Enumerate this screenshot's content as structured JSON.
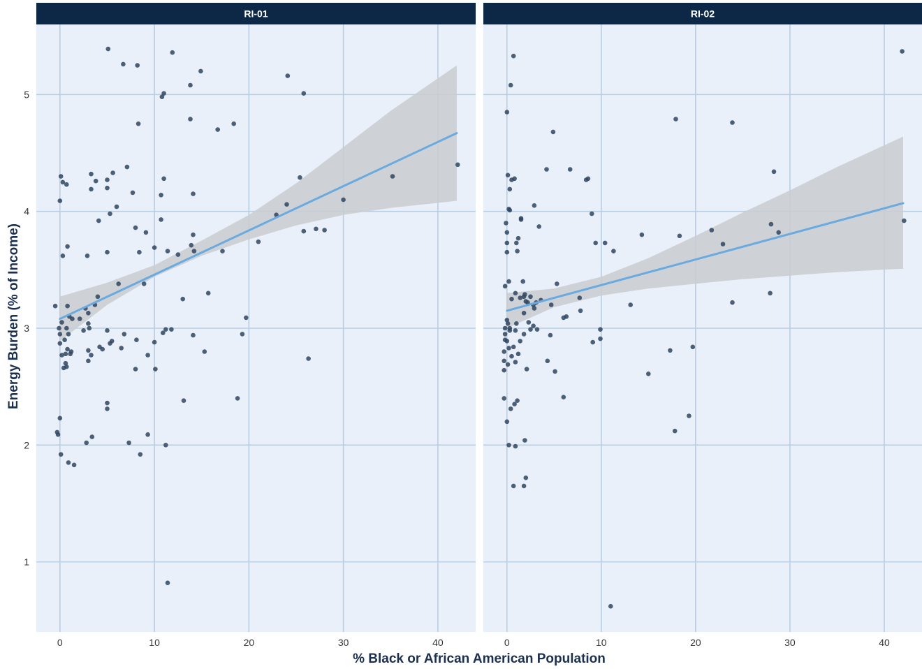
{
  "chart_data": {
    "type": "scatter",
    "xlabel": "% Black or African American Population",
    "ylabel": "Energy Burden (% of Income)",
    "xlim": [
      -2.5,
      44
    ],
    "ylim": [
      0.4,
      5.6
    ],
    "x_ticks": [
      0,
      10,
      20,
      30,
      40
    ],
    "y_ticks": [
      1,
      2,
      3,
      4,
      5
    ],
    "grid": true,
    "colors": {
      "strip": "#0d2847",
      "panel": "#e9f0f9",
      "grid": "#b9cde3",
      "point": "#2f4560",
      "fit_line": "#6aaade",
      "ribbon": "#c9ccd1"
    },
    "panels": [
      {
        "title": "RI-01",
        "fit": {
          "x": [
            0,
            42
          ],
          "y": [
            3.08,
            4.67
          ]
        },
        "ribbon": {
          "x": [
            0,
            5,
            10,
            15,
            20,
            25,
            30,
            35,
            42
          ],
          "lower": [
            2.89,
            3.2,
            3.44,
            3.62,
            3.76,
            3.88,
            3.97,
            4.03,
            4.09
          ],
          "upper": [
            3.27,
            3.39,
            3.54,
            3.75,
            3.97,
            4.24,
            4.55,
            4.86,
            5.25
          ]
        },
        "points": [
          [
            -0.5,
            3.19
          ],
          [
            -0.3,
            2.11
          ],
          [
            -0.2,
            2.09
          ],
          [
            -0.1,
            3.0
          ],
          [
            0.0,
            2.95
          ],
          [
            0.0,
            2.23
          ],
          [
            0.0,
            4.09
          ],
          [
            0.0,
            2.87
          ],
          [
            0.1,
            1.92
          ],
          [
            0.1,
            4.3
          ],
          [
            0.2,
            2.77
          ],
          [
            0.2,
            3.05
          ],
          [
            0.3,
            4.25
          ],
          [
            0.3,
            3.62
          ],
          [
            0.4,
            2.66
          ],
          [
            0.5,
            2.9
          ],
          [
            0.6,
            2.78
          ],
          [
            0.6,
            2.7
          ],
          [
            0.7,
            2.67
          ],
          [
            0.7,
            4.23
          ],
          [
            0.7,
            3.0
          ],
          [
            0.8,
            3.7
          ],
          [
            0.8,
            2.82
          ],
          [
            0.8,
            3.19
          ],
          [
            0.9,
            1.85
          ],
          [
            0.9,
            2.95
          ],
          [
            1.0,
            3.1
          ],
          [
            1.1,
            2.78
          ],
          [
            1.2,
            2.8
          ],
          [
            1.3,
            3.08
          ],
          [
            1.5,
            1.83
          ],
          [
            2.1,
            3.08
          ],
          [
            2.5,
            2.98
          ],
          [
            2.7,
            3.17
          ],
          [
            2.8,
            2.02
          ],
          [
            2.9,
            3.62
          ],
          [
            3.0,
            2.72
          ],
          [
            3.0,
            2.81
          ],
          [
            3.0,
            3.13
          ],
          [
            3.0,
            3.04
          ],
          [
            3.1,
            3.0
          ],
          [
            3.3,
            4.32
          ],
          [
            3.3,
            4.19
          ],
          [
            3.3,
            2.77
          ],
          [
            3.4,
            2.07
          ],
          [
            3.7,
            3.2
          ],
          [
            3.8,
            4.26
          ],
          [
            4.0,
            3.27
          ],
          [
            4.1,
            3.92
          ],
          [
            4.2,
            2.84
          ],
          [
            4.5,
            2.82
          ],
          [
            5.0,
            4.2
          ],
          [
            5.0,
            4.27
          ],
          [
            5.0,
            2.98
          ],
          [
            5.0,
            3.65
          ],
          [
            5.0,
            2.31
          ],
          [
            5.0,
            2.36
          ],
          [
            5.1,
            5.39
          ],
          [
            5.3,
            3.98
          ],
          [
            5.3,
            2.87
          ],
          [
            5.5,
            2.89
          ],
          [
            5.6,
            4.33
          ],
          [
            6.0,
            4.04
          ],
          [
            6.2,
            3.38
          ],
          [
            6.5,
            2.83
          ],
          [
            6.7,
            5.26
          ],
          [
            6.8,
            2.95
          ],
          [
            7.1,
            4.38
          ],
          [
            7.3,
            2.02
          ],
          [
            7.7,
            4.16
          ],
          [
            8.0,
            3.86
          ],
          [
            8.0,
            2.65
          ],
          [
            8.1,
            2.9
          ],
          [
            8.2,
            5.25
          ],
          [
            8.3,
            4.75
          ],
          [
            8.4,
            3.65
          ],
          [
            8.5,
            1.92
          ],
          [
            8.9,
            3.38
          ],
          [
            9.1,
            3.82
          ],
          [
            9.3,
            2.77
          ],
          [
            9.3,
            2.09
          ],
          [
            10.0,
            3.69
          ],
          [
            10.0,
            2.88
          ],
          [
            10.1,
            2.65
          ],
          [
            10.7,
            4.14
          ],
          [
            10.7,
            3.93
          ],
          [
            10.8,
            4.98
          ],
          [
            10.9,
            2.96
          ],
          [
            11.0,
            5.01
          ],
          [
            11.0,
            4.28
          ],
          [
            11.2,
            2.99
          ],
          [
            11.2,
            2.0
          ],
          [
            11.4,
            3.66
          ],
          [
            11.4,
            0.82
          ],
          [
            11.8,
            2.99
          ],
          [
            11.9,
            5.36
          ],
          [
            12.5,
            3.63
          ],
          [
            13.0,
            3.25
          ],
          [
            13.1,
            2.38
          ],
          [
            13.8,
            5.08
          ],
          [
            13.8,
            4.79
          ],
          [
            13.9,
            3.71
          ],
          [
            14.1,
            4.15
          ],
          [
            14.1,
            2.94
          ],
          [
            14.1,
            3.8
          ],
          [
            14.2,
            3.66
          ],
          [
            14.9,
            5.2
          ],
          [
            15.3,
            2.8
          ],
          [
            15.7,
            3.3
          ],
          [
            16.7,
            4.7
          ],
          [
            17.2,
            3.66
          ],
          [
            18.4,
            4.75
          ],
          [
            18.8,
            2.4
          ],
          [
            19.3,
            2.95
          ],
          [
            19.7,
            3.09
          ],
          [
            21.0,
            3.74
          ],
          [
            22.9,
            3.97
          ],
          [
            24.0,
            4.06
          ],
          [
            24.1,
            5.16
          ],
          [
            25.4,
            4.29
          ],
          [
            25.8,
            5.01
          ],
          [
            25.8,
            3.83
          ],
          [
            26.3,
            2.74
          ],
          [
            27.1,
            3.85
          ],
          [
            28.0,
            3.84
          ],
          [
            30.0,
            4.1
          ],
          [
            35.2,
            4.3
          ],
          [
            42.1,
            4.4
          ]
        ]
      },
      {
        "title": "RI-02",
        "fit": {
          "x": [
            0,
            42
          ],
          "y": [
            3.15,
            4.07
          ]
        },
        "ribbon": {
          "x": [
            0,
            5,
            10,
            15,
            20,
            25,
            30,
            35,
            42
          ],
          "lower": [
            3.0,
            3.18,
            3.28,
            3.34,
            3.38,
            3.42,
            3.45,
            3.48,
            3.51
          ],
          "upper": [
            3.3,
            3.34,
            3.44,
            3.6,
            3.79,
            3.99,
            4.18,
            4.38,
            4.64
          ]
        },
        "points": [
          [
            -0.3,
            2.64
          ],
          [
            -0.3,
            2.4
          ],
          [
            -0.3,
            2.72
          ],
          [
            -0.3,
            2.8
          ],
          [
            -0.2,
            2.9
          ],
          [
            -0.2,
            2.95
          ],
          [
            -0.2,
            3.0
          ],
          [
            -0.2,
            3.36
          ],
          [
            -0.1,
            3.9
          ],
          [
            0.0,
            3.07
          ],
          [
            0.0,
            4.85
          ],
          [
            0.0,
            3.82
          ],
          [
            0.0,
            2.2
          ],
          [
            0.0,
            2.89
          ],
          [
            0.0,
            3.73
          ],
          [
            0.0,
            3.65
          ],
          [
            0.1,
            4.31
          ],
          [
            0.1,
            3.04
          ],
          [
            0.1,
            2.69
          ],
          [
            0.2,
            4.02
          ],
          [
            0.2,
            2.83
          ],
          [
            0.2,
            3.4
          ],
          [
            0.2,
            2.0
          ],
          [
            0.3,
            3.0
          ],
          [
            0.3,
            2.98
          ],
          [
            0.3,
            4.01
          ],
          [
            0.3,
            4.19
          ],
          [
            0.4,
            2.31
          ],
          [
            0.4,
            5.08
          ],
          [
            0.5,
            4.27
          ],
          [
            0.5,
            2.76
          ],
          [
            0.5,
            3.25
          ],
          [
            0.7,
            1.65
          ],
          [
            0.7,
            2.84
          ],
          [
            0.7,
            5.33
          ],
          [
            0.8,
            2.35
          ],
          [
            0.8,
            4.28
          ],
          [
            0.9,
            2.98
          ],
          [
            0.9,
            2.71
          ],
          [
            0.9,
            1.99
          ],
          [
            0.9,
            3.3
          ],
          [
            1.0,
            3.73
          ],
          [
            1.0,
            3.04
          ],
          [
            1.1,
            3.66
          ],
          [
            1.1,
            2.38
          ],
          [
            1.2,
            3.77
          ],
          [
            1.2,
            2.78
          ],
          [
            1.4,
            3.26
          ],
          [
            1.4,
            2.89
          ],
          [
            1.5,
            3.94
          ],
          [
            1.5,
            3.93
          ],
          [
            1.7,
            3.4
          ],
          [
            1.8,
            2.95
          ],
          [
            1.8,
            3.27
          ],
          [
            1.8,
            3.13
          ],
          [
            1.8,
            1.65
          ],
          [
            1.9,
            2.04
          ],
          [
            1.9,
            3.29
          ],
          [
            2.0,
            1.72
          ],
          [
            2.0,
            3.23
          ],
          [
            2.1,
            2.65
          ],
          [
            2.2,
            3.22
          ],
          [
            2.3,
            3.05
          ],
          [
            2.5,
            3.27
          ],
          [
            2.5,
            2.99
          ],
          [
            2.8,
            3.2
          ],
          [
            2.8,
            3.02
          ],
          [
            2.9,
            3.17
          ],
          [
            2.9,
            4.05
          ],
          [
            3.1,
            3.22
          ],
          [
            3.2,
            2.99
          ],
          [
            3.4,
            3.87
          ],
          [
            3.6,
            3.24
          ],
          [
            4.2,
            4.36
          ],
          [
            4.3,
            2.72
          ],
          [
            4.6,
            2.94
          ],
          [
            4.7,
            3.2
          ],
          [
            4.9,
            4.68
          ],
          [
            5.1,
            2.63
          ],
          [
            5.3,
            3.38
          ],
          [
            6.0,
            2.41
          ],
          [
            6.0,
            3.09
          ],
          [
            6.3,
            3.1
          ],
          [
            6.7,
            4.36
          ],
          [
            7.7,
            3.26
          ],
          [
            7.8,
            3.15
          ],
          [
            8.4,
            4.27
          ],
          [
            8.6,
            4.28
          ],
          [
            9.0,
            3.98
          ],
          [
            9.1,
            2.88
          ],
          [
            9.4,
            3.73
          ],
          [
            9.9,
            2.99
          ],
          [
            9.9,
            2.91
          ],
          [
            10.4,
            3.73
          ],
          [
            11.3,
            3.66
          ],
          [
            11.0,
            0.62
          ],
          [
            13.1,
            3.2
          ],
          [
            14.3,
            3.8
          ],
          [
            15.0,
            2.61
          ],
          [
            17.3,
            2.81
          ],
          [
            17.8,
            2.12
          ],
          [
            17.9,
            4.79
          ],
          [
            18.3,
            3.79
          ],
          [
            19.3,
            2.25
          ],
          [
            19.7,
            2.84
          ],
          [
            21.7,
            3.84
          ],
          [
            22.9,
            3.72
          ],
          [
            23.9,
            3.22
          ],
          [
            23.9,
            4.76
          ],
          [
            27.9,
            3.3
          ],
          [
            28.0,
            3.89
          ],
          [
            28.3,
            4.34
          ],
          [
            28.8,
            3.82
          ],
          [
            41.9,
            5.37
          ],
          [
            42.1,
            3.92
          ]
        ]
      }
    ]
  }
}
